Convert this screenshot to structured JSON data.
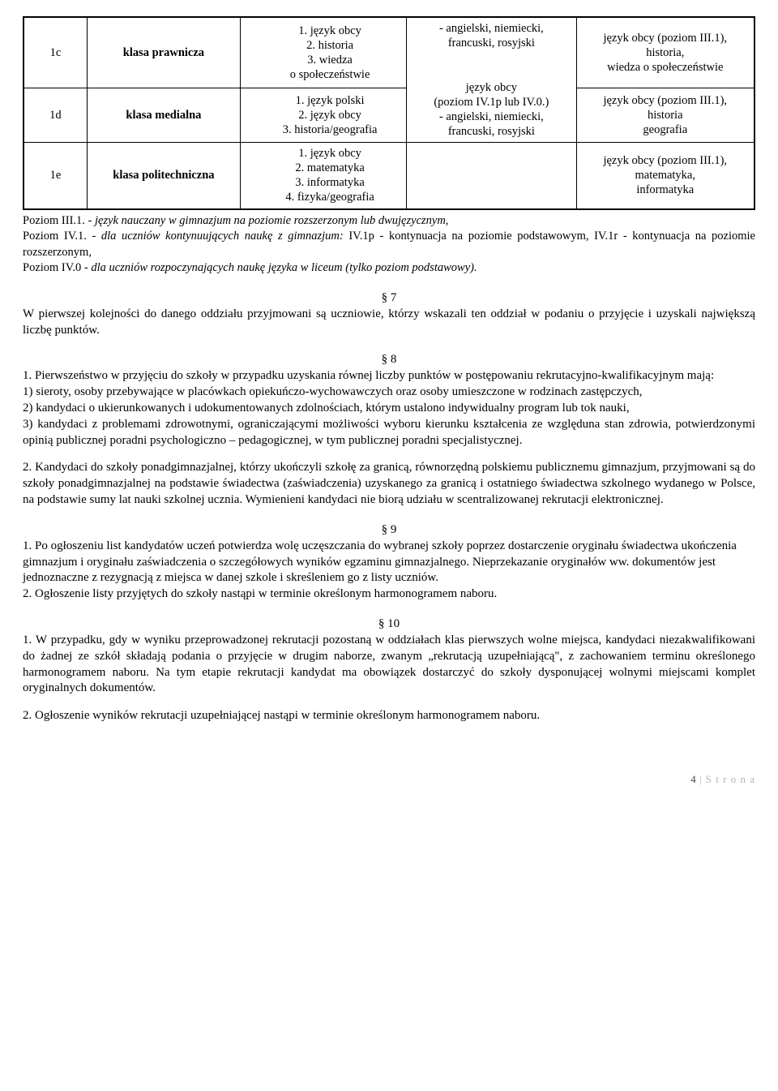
{
  "table": {
    "rows": [
      {
        "code": "1c",
        "name": "klasa prawnicza",
        "subjects": "1. język obcy\n2. historia\n3. wiedza\no społeczeństwie",
        "mid_upper": "- angielski, niemiecki,\nfrancuski, rosyjski\n\njęzyk obcy\n(poziom IV.1p lub IV.0.)\n- angielski, niemiecki,\nfrancuski, rosyjski",
        "right": "język obcy (poziom III.1),\nhistoria,\nwiedza o społeczeństwie"
      },
      {
        "code": "1d",
        "name": "klasa medialna",
        "subjects": "1. język polski\n2. język obcy\n3. historia/geografia",
        "right": "język obcy (poziom III.1),\nhistoria\ngeografia"
      },
      {
        "code": "1e",
        "name": "klasa politechniczna",
        "subjects": "1. język obcy\n2. matematyka\n3. informatyka\n4. fizyka/geografia",
        "right": "język obcy (poziom III.1),\nmatematyka,\ninformatyka"
      }
    ]
  },
  "notes": {
    "l1a": "Poziom III.1. - ",
    "l1b": "język nauczany w gimnazjum na poziomie rozszerzonym lub dwujęzycznym,",
    "l2a": "Poziom IV.1. - ",
    "l2b": "dla uczniów kontynuujących naukę z gimnazjum:",
    "l2c": " IV.1p - kontynuacja na poziomie podstawowym, IV.1r - kontynuacja na poziomie rozszerzonym,",
    "l3a": "Poziom IV.0 - ",
    "l3b": "dla uczniów rozpoczynających naukę języka w liceum (tylko poziom podstawowy)."
  },
  "s7": {
    "num": "§ 7",
    "text": "W pierwszej kolejności do danego oddziału przyjmowani są uczniowie, którzy wskazali ten oddział w podaniu o przyjęcie i uzyskali największą liczbę punktów."
  },
  "s8": {
    "num": "§ 8",
    "p1": "1. Pierwszeństwo w przyjęciu do szkoły w przypadku uzyskania równej liczby punktów w postępowaniu rekrutacyjno-kwalifikacyjnym mają:",
    "p1a": "1) sieroty, osoby przebywające w placówkach opiekuńczo-wychowawczych oraz osoby umieszczone w rodzinach zastępczych,",
    "p1b": "2) kandydaci o ukierunkowanych i udokumentowanych zdolnościach, którym ustalono indywidualny program lub tok nauki,",
    "p1c": "3) kandydaci z problemami zdrowotnymi, ograniczającymi możliwości wyboru kierunku kształcenia ze względuna stan zdrowia, potwierdzonymi opinią publicznej poradni psychologiczno – pedagogicznej, w tym publicznej poradni specjalistycznej.",
    "p2": "2. Kandydaci do szkoły ponadgimnazjalnej, którzy ukończyli szkołę za granicą, równorzędną polskiemu publicznemu gimnazjum, przyjmowani są do szkoły ponadgimnazjalnej na podstawie świadectwa (zaświadczenia) uzyskanego za granicą i ostatniego świadectwa szkolnego wydanego w Polsce, na podstawie sumy lat nauki szkolnej ucznia. Wymienieni kandydaci nie biorą udziału w scentralizowanej rekrutacji elektronicznej."
  },
  "s9": {
    "num": "§ 9",
    "p1": "1. Po ogłoszeniu list kandydatów uczeń potwierdza wolę uczęszczania do wybranej szkoły poprzez dostarczenie oryginału świadectwa ukończenia gimnazjum i oryginału zaświadczenia o szczegółowych wyników egzaminu gimnazjalnego. Nieprzekazanie oryginałów ww. dokumentów  jest jednoznaczne z rezygnacją z miejsca w danej szkole i skreśleniem go z listy uczniów.",
    "p2": "2. Ogłoszenie listy przyjętych do szkoły nastąpi w terminie określonym harmonogramem naboru."
  },
  "s10": {
    "num": "§ 10",
    "p1": "1. W przypadku, gdy w wyniku przeprowadzonej rekrutacji pozostaną w oddziałach klas pierwszych wolne miejsca, kandydaci niezakwalifikowani do żadnej ze szkół składają podania o przyjęcie w drugim naborze, zwanym „rekrutacją uzupełniającą\", z  zachowaniem terminu określonego harmonogramem naboru. Na tym etapie rekrutacji kandydat ma obowiązek dostarczyć do szkoły dysponującej wolnymi miejscami komplet oryginalnych dokumentów.",
    "p2": "2. Ogłoszenie wyników rekrutacji uzupełniającej nastąpi w terminie określonym harmonogramem naboru."
  },
  "footer": {
    "page": "4",
    "label": "S t r o n a"
  }
}
